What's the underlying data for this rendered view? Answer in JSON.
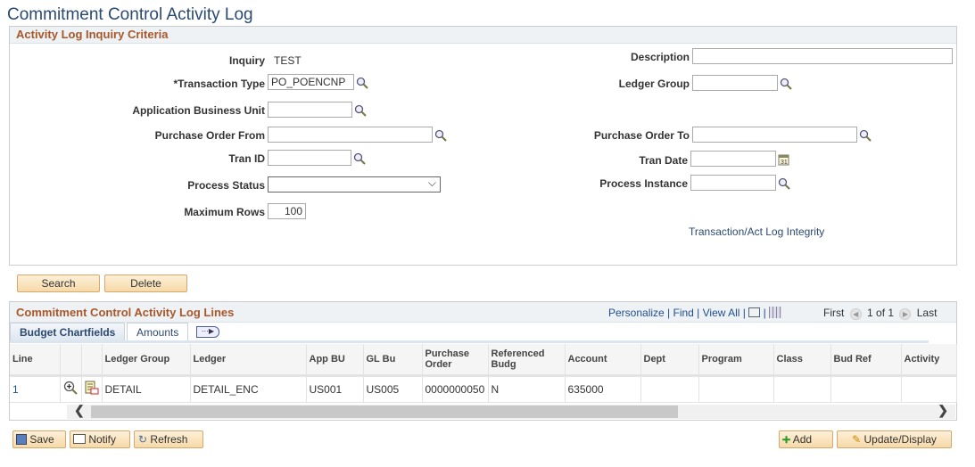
{
  "page_title": "Commitment Control Activity Log",
  "criteria": {
    "header": "Activity Log Inquiry Criteria",
    "inquiry_label": "Inquiry",
    "inquiry_value": "TEST",
    "transaction_type_label": "*Transaction Type",
    "transaction_type_value": "PO_POENCNP",
    "abu_label": "Application Business Unit",
    "abu_value": "",
    "po_from_label": "Purchase Order From",
    "po_from_value": "",
    "tran_id_label": "Tran ID",
    "tran_id_value": "",
    "process_status_label": "Process Status",
    "process_status_value": "",
    "max_rows_label": "Maximum Rows",
    "max_rows_value": "100",
    "description_label": "Description",
    "description_value": "",
    "ledger_group_label": "Ledger Group",
    "ledger_group_value": "",
    "po_to_label": "Purchase Order To",
    "po_to_value": "",
    "tran_date_label": "Tran Date",
    "tran_date_value": "",
    "process_instance_label": "Process Instance",
    "process_instance_value": "",
    "integrity_link": "Transaction/Act Log Integrity"
  },
  "actions": {
    "search": "Search",
    "delete": "Delete"
  },
  "grid": {
    "header": "Commitment Control Activity Log Lines",
    "personalize": "Personalize",
    "find": "Find",
    "view_all": "View All",
    "first": "First",
    "page_info": "1 of 1",
    "last": "Last",
    "tabs": [
      "Budget Chartfields",
      "Amounts"
    ],
    "columns": [
      "Line",
      "",
      "",
      "Ledger Group",
      "Ledger",
      "App BU",
      "GL Bu",
      "Purchase Order",
      "Referenced Budg",
      "Account",
      "Dept",
      "Program",
      "Class",
      "Bud Ref",
      "Activity"
    ],
    "rows": [
      {
        "line": "1",
        "ledger_group": "DETAIL",
        "ledger": "DETAIL_ENC",
        "app_bu": "US001",
        "gl_bu": "US005",
        "po": "0000000050",
        "ref_budg": "N",
        "account": "635000",
        "dept": "",
        "program": "",
        "class": "",
        "bud_ref": "",
        "activity": ""
      }
    ],
    "scroll_fraction": 0.7
  },
  "footer": {
    "save": "Save",
    "notify": "Notify",
    "refresh": "Refresh",
    "add": "Add",
    "update_display": "Update/Display"
  }
}
